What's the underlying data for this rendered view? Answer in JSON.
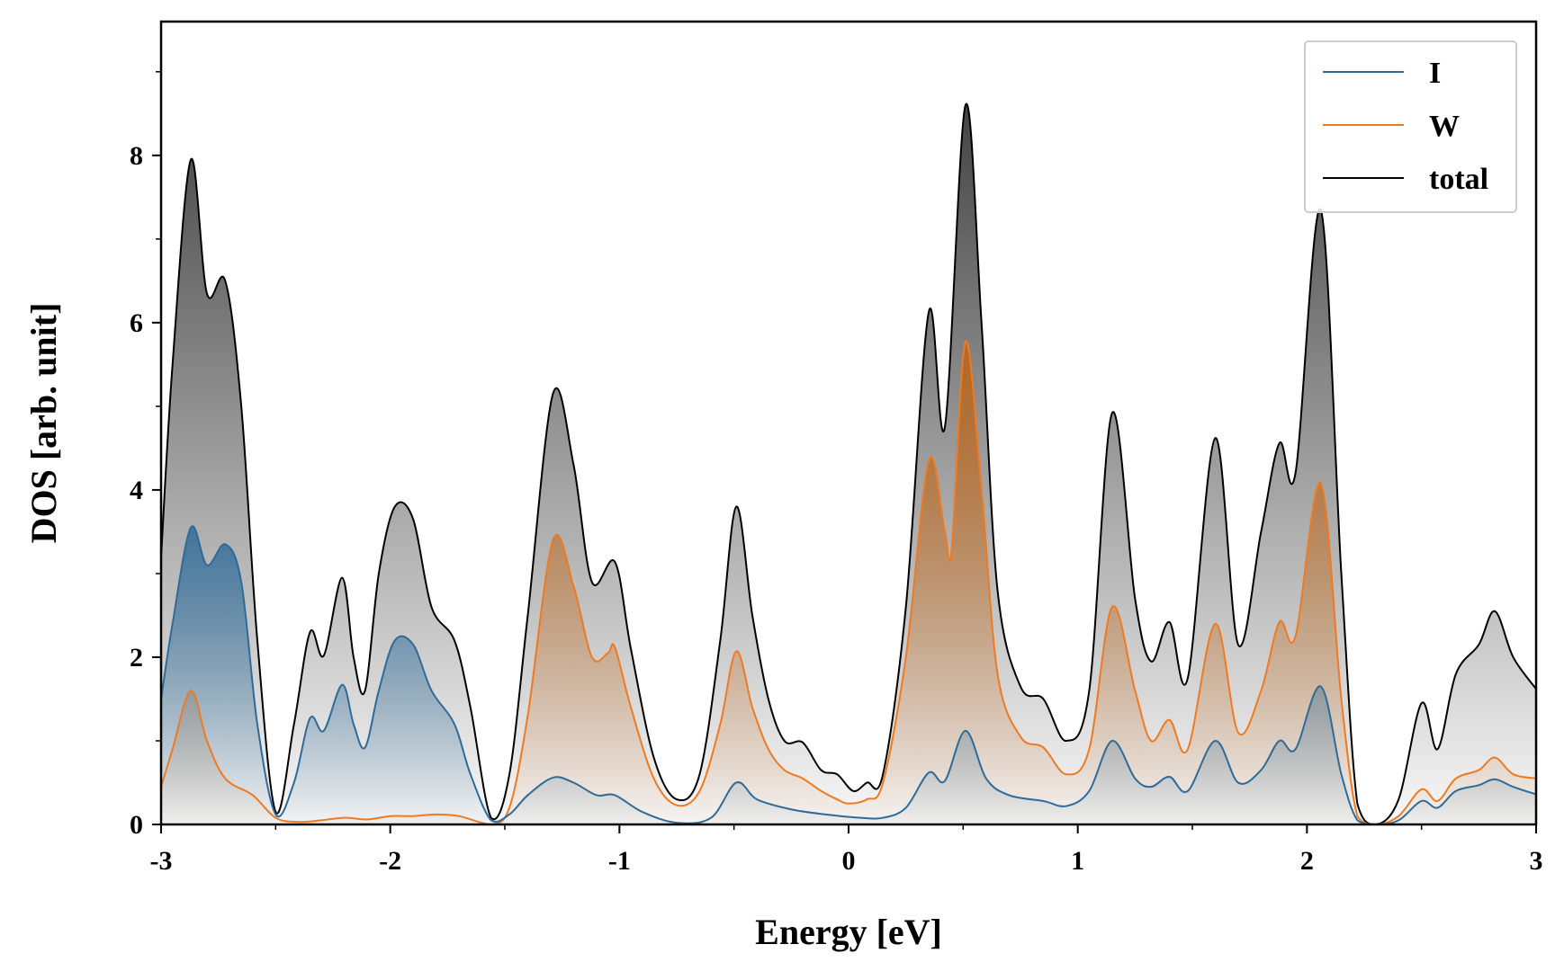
{
  "chart_data": {
    "type": "area",
    "title": "",
    "xlabel": "Energy [eV]",
    "ylabel": "DOS [arb. unit]",
    "xlim": [
      -3,
      3
    ],
    "ylim": [
      0,
      9.6
    ],
    "xticks": [
      -3,
      -2,
      -1,
      0,
      1,
      2,
      3
    ],
    "xtick_labels": [
      "-3",
      "-2",
      "-1",
      "0",
      "1",
      "2",
      "3"
    ],
    "yticks": [
      0,
      2,
      4,
      6,
      8
    ],
    "ytick_labels": [
      "0",
      "2",
      "4",
      "6",
      "8"
    ],
    "x_minor_step": 0.5,
    "y_minor_step": 1,
    "legend_position": "top-right",
    "series": [
      {
        "name": "I",
        "color": "#2f6b98",
        "fill_color": "#2f6b98",
        "points": [
          [
            -3.0,
            1.5
          ],
          [
            -2.95,
            2.4
          ],
          [
            -2.87,
            3.55
          ],
          [
            -2.8,
            3.1
          ],
          [
            -2.72,
            3.35
          ],
          [
            -2.65,
            2.9
          ],
          [
            -2.58,
            1.2
          ],
          [
            -2.5,
            0.12
          ],
          [
            -2.42,
            0.5
          ],
          [
            -2.35,
            1.27
          ],
          [
            -2.29,
            1.12
          ],
          [
            -2.21,
            1.67
          ],
          [
            -2.16,
            1.2
          ],
          [
            -2.11,
            0.92
          ],
          [
            -2.05,
            1.6
          ],
          [
            -1.98,
            2.2
          ],
          [
            -1.9,
            2.15
          ],
          [
            -1.82,
            1.6
          ],
          [
            -1.72,
            1.2
          ],
          [
            -1.65,
            0.6
          ],
          [
            -1.56,
            0.05
          ],
          [
            -1.48,
            0.12
          ],
          [
            -1.4,
            0.35
          ],
          [
            -1.29,
            0.56
          ],
          [
            -1.2,
            0.5
          ],
          [
            -1.1,
            0.35
          ],
          [
            -1.02,
            0.35
          ],
          [
            -0.9,
            0.15
          ],
          [
            -0.75,
            0.02
          ],
          [
            -0.6,
            0.08
          ],
          [
            -0.49,
            0.5
          ],
          [
            -0.4,
            0.3
          ],
          [
            -0.25,
            0.18
          ],
          [
            -0.1,
            0.12
          ],
          [
            0.05,
            0.08
          ],
          [
            0.15,
            0.08
          ],
          [
            0.25,
            0.2
          ],
          [
            0.35,
            0.62
          ],
          [
            0.42,
            0.52
          ],
          [
            0.51,
            1.12
          ],
          [
            0.6,
            0.55
          ],
          [
            0.7,
            0.35
          ],
          [
            0.85,
            0.28
          ],
          [
            0.95,
            0.22
          ],
          [
            1.05,
            0.4
          ],
          [
            1.15,
            1.0
          ],
          [
            1.25,
            0.55
          ],
          [
            1.32,
            0.45
          ],
          [
            1.4,
            0.57
          ],
          [
            1.48,
            0.4
          ],
          [
            1.6,
            1.0
          ],
          [
            1.7,
            0.5
          ],
          [
            1.8,
            0.65
          ],
          [
            1.88,
            1.0
          ],
          [
            1.95,
            0.9
          ],
          [
            2.06,
            1.65
          ],
          [
            2.15,
            0.6
          ],
          [
            2.22,
            0.05
          ],
          [
            2.3,
            0.0
          ],
          [
            2.4,
            0.05
          ],
          [
            2.5,
            0.28
          ],
          [
            2.57,
            0.2
          ],
          [
            2.65,
            0.4
          ],
          [
            2.75,
            0.47
          ],
          [
            2.82,
            0.54
          ],
          [
            2.9,
            0.45
          ],
          [
            3.0,
            0.36
          ]
        ]
      },
      {
        "name": "W",
        "color": "#ee7a21",
        "fill_color": "#c06414",
        "points": [
          [
            -3.0,
            0.45
          ],
          [
            -2.95,
            0.9
          ],
          [
            -2.87,
            1.6
          ],
          [
            -2.8,
            1.0
          ],
          [
            -2.72,
            0.55
          ],
          [
            -2.6,
            0.35
          ],
          [
            -2.5,
            0.08
          ],
          [
            -2.4,
            0.03
          ],
          [
            -2.3,
            0.05
          ],
          [
            -2.2,
            0.08
          ],
          [
            -2.1,
            0.06
          ],
          [
            -2.0,
            0.1
          ],
          [
            -1.9,
            0.1
          ],
          [
            -1.8,
            0.12
          ],
          [
            -1.7,
            0.1
          ],
          [
            -1.56,
            0.0
          ],
          [
            -1.48,
            0.2
          ],
          [
            -1.4,
            1.3
          ],
          [
            -1.29,
            3.4
          ],
          [
            -1.2,
            2.85
          ],
          [
            -1.12,
            2.0
          ],
          [
            -1.05,
            2.05
          ],
          [
            -1.02,
            2.12
          ],
          [
            -0.95,
            1.4
          ],
          [
            -0.85,
            0.55
          ],
          [
            -0.75,
            0.23
          ],
          [
            -0.65,
            0.4
          ],
          [
            -0.56,
            1.2
          ],
          [
            -0.49,
            2.07
          ],
          [
            -0.42,
            1.4
          ],
          [
            -0.35,
            0.9
          ],
          [
            -0.28,
            0.65
          ],
          [
            -0.2,
            0.55
          ],
          [
            -0.12,
            0.4
          ],
          [
            -0.05,
            0.3
          ],
          [
            0.0,
            0.25
          ],
          [
            0.08,
            0.3
          ],
          [
            0.15,
            0.5
          ],
          [
            0.25,
            2.0
          ],
          [
            0.35,
            4.35
          ],
          [
            0.42,
            3.5
          ],
          [
            0.45,
            3.3
          ],
          [
            0.51,
            5.77
          ],
          [
            0.58,
            4.0
          ],
          [
            0.65,
            1.8
          ],
          [
            0.75,
            1.05
          ],
          [
            0.85,
            0.92
          ],
          [
            0.95,
            0.6
          ],
          [
            1.05,
            0.9
          ],
          [
            1.15,
            2.6
          ],
          [
            1.25,
            1.6
          ],
          [
            1.32,
            1.0
          ],
          [
            1.4,
            1.25
          ],
          [
            1.48,
            0.9
          ],
          [
            1.6,
            2.4
          ],
          [
            1.7,
            1.1
          ],
          [
            1.8,
            1.6
          ],
          [
            1.88,
            2.42
          ],
          [
            1.95,
            2.25
          ],
          [
            2.06,
            4.08
          ],
          [
            2.15,
            1.5
          ],
          [
            2.22,
            0.1
          ],
          [
            2.3,
            0.0
          ],
          [
            2.4,
            0.1
          ],
          [
            2.5,
            0.42
          ],
          [
            2.57,
            0.28
          ],
          [
            2.65,
            0.55
          ],
          [
            2.75,
            0.65
          ],
          [
            2.82,
            0.8
          ],
          [
            2.9,
            0.6
          ],
          [
            3.0,
            0.55
          ]
        ]
      },
      {
        "name": "total",
        "color": "#000000",
        "fill_color": "#222222",
        "points": [
          [
            -3.0,
            3.2
          ],
          [
            -2.95,
            5.5
          ],
          [
            -2.87,
            7.95
          ],
          [
            -2.8,
            6.35
          ],
          [
            -2.72,
            6.5
          ],
          [
            -2.65,
            5.0
          ],
          [
            -2.58,
            2.2
          ],
          [
            -2.5,
            0.15
          ],
          [
            -2.42,
            1.2
          ],
          [
            -2.35,
            2.3
          ],
          [
            -2.29,
            2.02
          ],
          [
            -2.21,
            2.95
          ],
          [
            -2.16,
            2.0
          ],
          [
            -2.11,
            1.6
          ],
          [
            -2.05,
            3.0
          ],
          [
            -1.98,
            3.8
          ],
          [
            -1.9,
            3.65
          ],
          [
            -1.82,
            2.6
          ],
          [
            -1.72,
            2.2
          ],
          [
            -1.65,
            1.4
          ],
          [
            -1.56,
            0.08
          ],
          [
            -1.48,
            0.6
          ],
          [
            -1.4,
            2.5
          ],
          [
            -1.29,
            5.15
          ],
          [
            -1.2,
            4.3
          ],
          [
            -1.12,
            2.9
          ],
          [
            -1.02,
            3.14
          ],
          [
            -0.95,
            2.1
          ],
          [
            -0.85,
            0.8
          ],
          [
            -0.75,
            0.3
          ],
          [
            -0.65,
            0.6
          ],
          [
            -0.56,
            2.2
          ],
          [
            -0.49,
            3.8
          ],
          [
            -0.42,
            2.5
          ],
          [
            -0.35,
            1.5
          ],
          [
            -0.28,
            1.0
          ],
          [
            -0.2,
            0.98
          ],
          [
            -0.12,
            0.65
          ],
          [
            -0.05,
            0.6
          ],
          [
            0.02,
            0.4
          ],
          [
            0.08,
            0.5
          ],
          [
            0.15,
            0.6
          ],
          [
            0.25,
            2.6
          ],
          [
            0.35,
            6.13
          ],
          [
            0.42,
            4.75
          ],
          [
            0.51,
            8.6
          ],
          [
            0.58,
            6.0
          ],
          [
            0.65,
            2.8
          ],
          [
            0.75,
            1.65
          ],
          [
            0.85,
            1.5
          ],
          [
            0.95,
            1.0
          ],
          [
            1.05,
            1.6
          ],
          [
            1.15,
            4.92
          ],
          [
            1.25,
            2.7
          ],
          [
            1.32,
            1.95
          ],
          [
            1.4,
            2.42
          ],
          [
            1.48,
            1.75
          ],
          [
            1.6,
            4.62
          ],
          [
            1.7,
            2.15
          ],
          [
            1.8,
            3.5
          ],
          [
            1.88,
            4.56
          ],
          [
            1.95,
            4.2
          ],
          [
            2.06,
            7.35
          ],
          [
            2.15,
            3.0
          ],
          [
            2.22,
            0.25
          ],
          [
            2.3,
            0.0
          ],
          [
            2.4,
            0.3
          ],
          [
            2.5,
            1.45
          ],
          [
            2.57,
            0.9
          ],
          [
            2.65,
            1.8
          ],
          [
            2.75,
            2.15
          ],
          [
            2.82,
            2.55
          ],
          [
            2.9,
            2.0
          ],
          [
            3.0,
            1.62
          ]
        ]
      }
    ]
  }
}
